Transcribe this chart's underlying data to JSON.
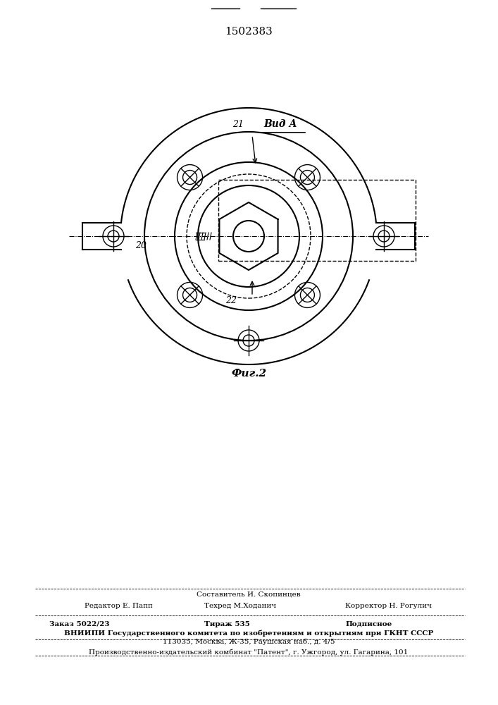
{
  "patent_number": "1502383",
  "fig_label": "Фиг.2",
  "view_label": "Вид А",
  "label_21": "21",
  "label_20": "20",
  "label_22": "22",
  "bg_color": "#ffffff",
  "line_color": "#000000",
  "footer_line1_left": "Редактор Е. Папп",
  "footer_line1_center": "Составитель И. Скопинцев",
  "footer_line1_right": "",
  "footer_line2_left": "",
  "footer_line2_center": "Техред М.Хoданич",
  "footer_line2_right": "Корректор Н. Рогулич",
  "footer_line3_left": "Заказ 5022/23",
  "footer_line3_center": "Тираж 535",
  "footer_line3_right": "Подписное",
  "footer_line4": "ВНИИПИ Государственного комитета по изобретениям и открытиям при ГКНТ СССР",
  "footer_line5": "113035, Москва, Ж-35, Раушская наб., д. 4/5",
  "footer_line6": "Производственно-издательский комбинат \"Патент\", г. Ужгород, ул. Гагарина, 101"
}
